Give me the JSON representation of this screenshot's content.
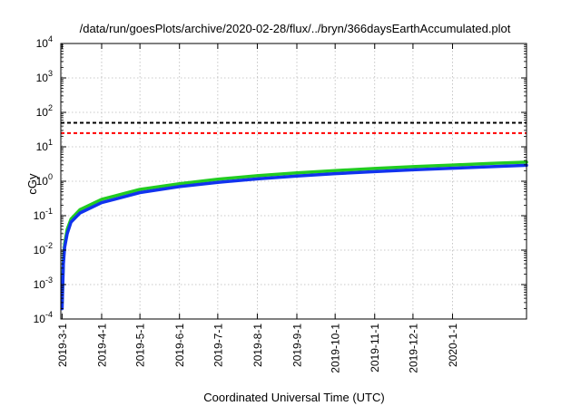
{
  "chart_data": {
    "type": "line",
    "title": "/data/run/goesPlots/archive/2020-02-28/flux/../bryn/366daysEarthAccumulated.plot",
    "xlabel": "Coordinated Universal Time (UTC)",
    "ylabel": "cGy",
    "yscale": "log",
    "ylim": [
      0.0001,
      10000
    ],
    "xlim": [
      "2019-02-28",
      "2020-02-28"
    ],
    "grid": true,
    "x_ticks": [
      "2019-3-1",
      "2019-4-1",
      "2019-5-1",
      "2019-6-1",
      "2019-7-1",
      "2019-8-1",
      "2019-9-1",
      "2019-10-1",
      "2019-11-1",
      "2019-12-1",
      "2020-1-1"
    ],
    "y_ticks": [
      {
        "value": 0.0001,
        "base": "10",
        "exp": "-4"
      },
      {
        "value": 0.001,
        "base": "10",
        "exp": "-3"
      },
      {
        "value": 0.01,
        "base": "10",
        "exp": "-2"
      },
      {
        "value": 0.1,
        "base": "10",
        "exp": "-1"
      },
      {
        "value": 1,
        "base": "10",
        "exp": "0"
      },
      {
        "value": 10,
        "base": "10",
        "exp": "1"
      },
      {
        "value": 100,
        "base": "10",
        "exp": "2"
      },
      {
        "value": 1000,
        "base": "10",
        "exp": "3"
      },
      {
        "value": 10000,
        "base": "10",
        "exp": "4"
      }
    ],
    "hlines": [
      {
        "y": 50,
        "color": "#000000",
        "style": "dashed"
      },
      {
        "y": 25,
        "color": "#ff0000",
        "style": "dashed"
      }
    ],
    "series": [
      {
        "color": "#22cc22",
        "x": [
          "2019-03-01",
          "2019-03-02",
          "2019-03-03",
          "2019-03-05",
          "2019-03-08",
          "2019-03-15",
          "2019-04-01",
          "2019-05-01",
          "2019-06-01",
          "2019-07-01",
          "2019-08-01",
          "2019-09-01",
          "2019-10-01",
          "2019-11-01",
          "2019-12-01",
          "2020-01-01",
          "2020-02-01",
          "2020-02-28"
        ],
        "values": [
          0.0003,
          0.005,
          0.015,
          0.04,
          0.08,
          0.15,
          0.3,
          0.58,
          0.85,
          1.15,
          1.45,
          1.75,
          2.05,
          2.35,
          2.65,
          2.95,
          3.3,
          3.6
        ]
      },
      {
        "color": "#1133ee",
        "x": [
          "2019-03-01",
          "2019-03-02",
          "2019-03-03",
          "2019-03-05",
          "2019-03-08",
          "2019-03-15",
          "2019-04-01",
          "2019-05-01",
          "2019-06-01",
          "2019-07-01",
          "2019-08-01",
          "2019-09-01",
          "2019-10-01",
          "2019-11-01",
          "2019-12-01",
          "2020-01-01",
          "2020-02-01",
          "2020-02-28"
        ],
        "values": [
          0.0002,
          0.004,
          0.012,
          0.03,
          0.065,
          0.12,
          0.24,
          0.47,
          0.7,
          0.93,
          1.17,
          1.42,
          1.66,
          1.9,
          2.15,
          2.4,
          2.65,
          2.9
        ]
      }
    ]
  }
}
